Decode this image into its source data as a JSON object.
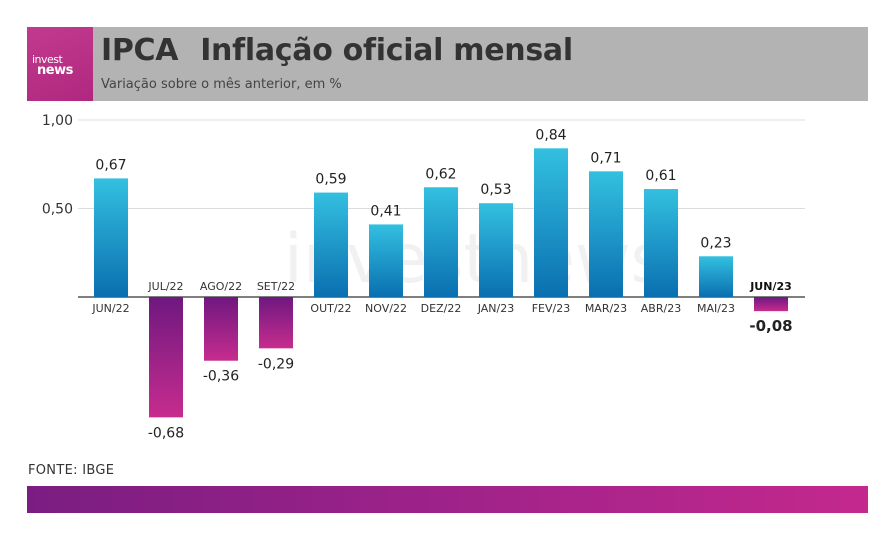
{
  "header": {
    "logo_line1": "invest",
    "logo_line2": "news",
    "title_main": "IPCA",
    "title_rest": "Inflação oficial mensal",
    "subtitle": "Variação sobre o mês anterior, em %"
  },
  "source": "FONTE: IBGE",
  "watermark": "investnews",
  "colors": {
    "positive_top": "#33c0e0",
    "positive_bottom": "#0a6fb0",
    "negative_top": "#6e1880",
    "negative_bottom": "#c72c8e",
    "header_bg": "#b3b3b3",
    "logo_bg": "#b92d86"
  },
  "chart_data": {
    "type": "bar",
    "categories": [
      "JUN/22",
      "JUL/22",
      "AGO/22",
      "SET/22",
      "OUT/22",
      "NOV/22",
      "DEZ/22",
      "JAN/23",
      "FEV/23",
      "MAR/23",
      "ABR/23",
      "MAI/23",
      "JUN/23"
    ],
    "values": [
      0.67,
      -0.68,
      -0.36,
      -0.29,
      0.59,
      0.41,
      0.62,
      0.53,
      0.84,
      0.71,
      0.61,
      0.23,
      -0.08
    ],
    "value_labels": [
      "0,67",
      "-0,68",
      "-0,36",
      "-0,29",
      "0,59",
      "0,41",
      "0,62",
      "0,53",
      "0,84",
      "0,71",
      "0,61",
      "0,23",
      "-0,08"
    ],
    "highlight_index": 12,
    "ytick_values": [
      1.0,
      0.5
    ],
    "ytick_labels": [
      "1,00",
      "0,50"
    ],
    "ylim": [
      -0.8,
      1.0
    ],
    "grid": true
  }
}
